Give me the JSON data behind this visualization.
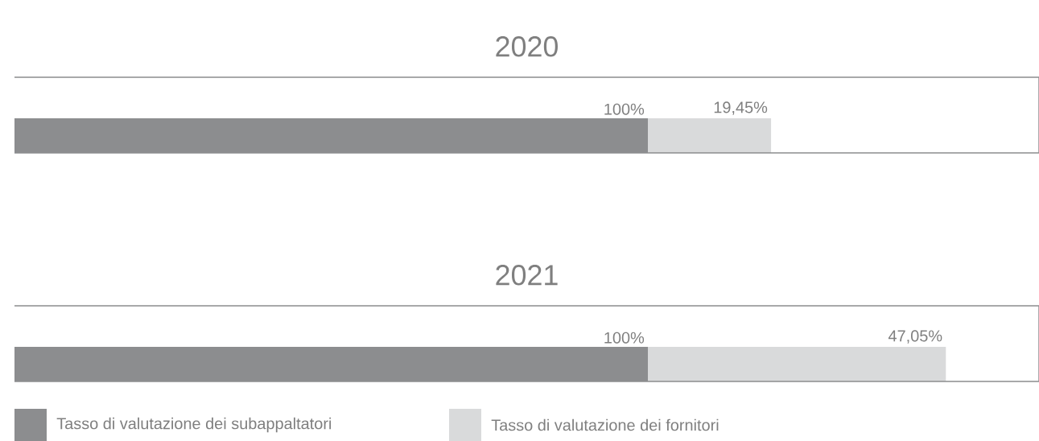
{
  "chart_data": [
    {
      "type": "bar",
      "orientation": "horizontal",
      "stacked": true,
      "title": "2020",
      "categories": [
        null
      ],
      "series": [
        {
          "color": "#8c8d8f",
          "values": [
            100
          ],
          "value_labels": [
            "100%"
          ]
        },
        {
          "color": "#d9dadb",
          "values": [
            19.45
          ],
          "value_labels": [
            "19,45%"
          ]
        }
      ]
    },
    {
      "type": "bar",
      "orientation": "horizontal",
      "stacked": true,
      "title": "2021",
      "categories": [
        null
      ],
      "legend": "bottom",
      "series": [
        {
          "name": "Tasso di valutazione dei subappaltatori",
          "color": "#8c8d8f",
          "values": [
            100
          ],
          "value_labels": [
            "100%"
          ]
        },
        {
          "name": "Tasso di valutazione dei fornitori",
          "color": "#d9dadb",
          "values": [
            47.05
          ],
          "value_labels": [
            "47,05%"
          ]
        }
      ]
    }
  ]
}
